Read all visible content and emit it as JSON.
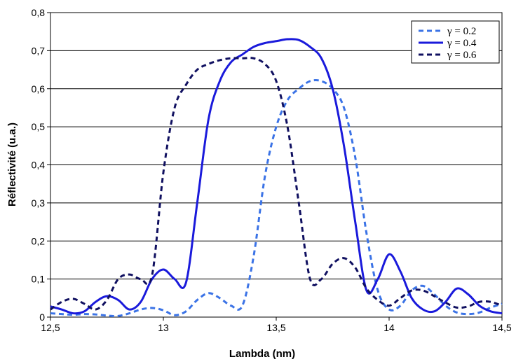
{
  "chart_data": {
    "type": "line",
    "title": "",
    "xlabel": "Lambda (nm)",
    "ylabel": "Réflectivité (u.a.)",
    "xlim": [
      12.5,
      14.5
    ],
    "ylim": [
      0,
      0.8
    ],
    "x_ticks": [
      12.5,
      13,
      13.5,
      14,
      14.5
    ],
    "x_tick_labels": [
      "12,5",
      "13",
      "13,5",
      "14",
      "14,5"
    ],
    "y_ticks": [
      0,
      0.1,
      0.2,
      0.3,
      0.4,
      0.5,
      0.6,
      0.7,
      0.8
    ],
    "y_tick_labels": [
      "0",
      "0,1",
      "0,2",
      "0,3",
      "0,4",
      "0,5",
      "0,6",
      "0,7",
      "0,8"
    ],
    "grid": "horizontal",
    "legend_position": "top-right",
    "series": [
      {
        "name": "γ = 0.2",
        "color": "#3b73e6",
        "style": "dashed",
        "x": [
          12.5,
          12.55,
          12.6,
          12.65,
          12.7,
          12.75,
          12.8,
          12.85,
          12.9,
          12.95,
          13.0,
          13.05,
          13.1,
          13.15,
          13.2,
          13.25,
          13.3,
          13.35,
          13.4,
          13.45,
          13.5,
          13.55,
          13.6,
          13.65,
          13.7,
          13.75,
          13.8,
          13.85,
          13.9,
          13.95,
          14.0,
          14.05,
          14.1,
          14.15,
          14.2,
          14.25,
          14.3,
          14.35,
          14.4,
          14.45,
          14.5
        ],
        "y": [
          0.01,
          0.008,
          0.006,
          0.008,
          0.007,
          0.004,
          0.003,
          0.01,
          0.02,
          0.024,
          0.018,
          0.005,
          0.015,
          0.045,
          0.063,
          0.05,
          0.03,
          0.03,
          0.16,
          0.37,
          0.5,
          0.57,
          0.6,
          0.62,
          0.62,
          0.6,
          0.55,
          0.42,
          0.22,
          0.07,
          0.02,
          0.03,
          0.07,
          0.082,
          0.06,
          0.03,
          0.012,
          0.008,
          0.012,
          0.025,
          0.035
        ]
      },
      {
        "name": "γ = 0.4",
        "color": "#1a1adb",
        "style": "solid",
        "x": [
          12.5,
          12.55,
          12.6,
          12.65,
          12.7,
          12.75,
          12.8,
          12.85,
          12.9,
          12.95,
          13.0,
          13.05,
          13.1,
          13.15,
          13.2,
          13.25,
          13.3,
          13.35,
          13.4,
          13.45,
          13.5,
          13.55,
          13.6,
          13.65,
          13.7,
          13.75,
          13.8,
          13.85,
          13.9,
          13.95,
          14.0,
          14.05,
          14.1,
          14.15,
          14.2,
          14.25,
          14.3,
          14.35,
          14.4,
          14.45,
          14.5
        ],
        "y": [
          0.028,
          0.02,
          0.01,
          0.015,
          0.04,
          0.055,
          0.045,
          0.02,
          0.04,
          0.1,
          0.125,
          0.1,
          0.09,
          0.3,
          0.52,
          0.62,
          0.67,
          0.69,
          0.71,
          0.72,
          0.725,
          0.73,
          0.728,
          0.71,
          0.68,
          0.6,
          0.45,
          0.25,
          0.07,
          0.1,
          0.165,
          0.12,
          0.05,
          0.02,
          0.015,
          0.04,
          0.075,
          0.06,
          0.03,
          0.015,
          0.01
        ]
      },
      {
        "name": "γ = 0.6",
        "color": "#101060",
        "style": "dashed",
        "x": [
          12.5,
          12.55,
          12.6,
          12.65,
          12.7,
          12.75,
          12.8,
          12.85,
          12.9,
          12.95,
          13.0,
          13.05,
          13.1,
          13.15,
          13.2,
          13.25,
          13.3,
          13.35,
          13.4,
          13.45,
          13.5,
          13.55,
          13.6,
          13.65,
          13.7,
          13.75,
          13.8,
          13.85,
          13.9,
          13.95,
          14.0,
          14.05,
          14.1,
          14.15,
          14.2,
          14.25,
          14.3,
          14.35,
          14.4,
          14.45,
          14.5
        ],
        "y": [
          0.02,
          0.04,
          0.048,
          0.035,
          0.02,
          0.045,
          0.1,
          0.112,
          0.1,
          0.11,
          0.38,
          0.55,
          0.61,
          0.65,
          0.665,
          0.675,
          0.68,
          0.68,
          0.68,
          0.665,
          0.62,
          0.5,
          0.3,
          0.1,
          0.1,
          0.14,
          0.155,
          0.13,
          0.075,
          0.045,
          0.03,
          0.05,
          0.07,
          0.07,
          0.055,
          0.038,
          0.025,
          0.028,
          0.04,
          0.04,
          0.03
        ]
      }
    ]
  }
}
